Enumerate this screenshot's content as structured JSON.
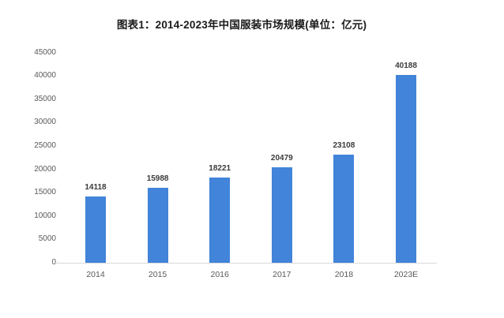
{
  "title": "图表1：2014-2023年中国服装市场规模(单位：亿元)",
  "colors": {
    "bar": "#4184d9",
    "axis_line": "#d9d9d9",
    "tick_text": "#595959",
    "data_label": "#3a3a3a",
    "title_text": "#1a1a1a",
    "background": "#ffffff"
  },
  "chart_data": {
    "type": "bar",
    "title": "图表1：2014-2023年中国服装市场规模(单位：亿元)",
    "categories": [
      "2014",
      "2015",
      "2016",
      "2017",
      "2018",
      "2023E"
    ],
    "values": [
      14118,
      15988,
      18221,
      20479,
      23108,
      40188
    ],
    "data_labels": [
      "14118",
      "15988",
      "18221",
      "20479",
      "23108",
      "40188"
    ],
    "unit": "亿元",
    "xlabel": "",
    "ylabel": "",
    "ylim": [
      0,
      45000
    ],
    "yticks": [
      0,
      5000,
      10000,
      15000,
      20000,
      25000,
      30000,
      35000,
      40000,
      45000
    ],
    "grid": false,
    "legend": "none"
  }
}
